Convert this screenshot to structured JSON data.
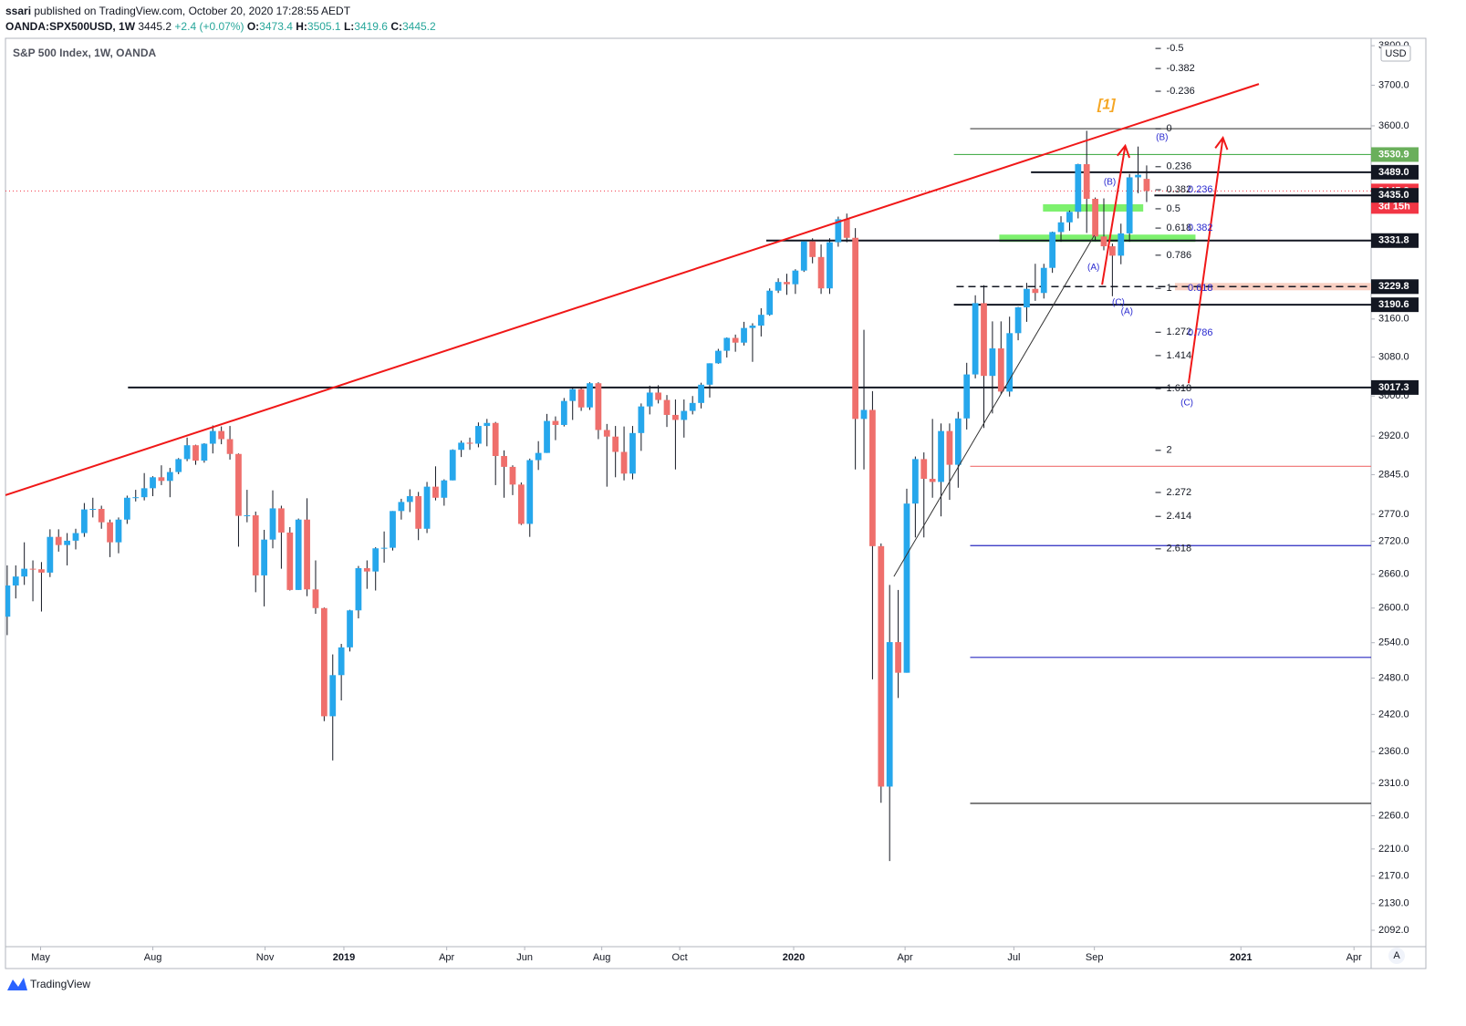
{
  "header": {
    "author": "ssari",
    "published": "published on TradingView.com, October 20, 2020 17:28:55 AEDT",
    "symbol": "OANDA:SPX500USD, 1W",
    "last": "3445.2",
    "change": "+2.4 (+0.07%)",
    "ohlc": [
      {
        "key": "O:",
        "value": "3473.4"
      },
      {
        "key": "H:",
        "value": "3505.1"
      },
      {
        "key": "L:",
        "value": "3419.6"
      },
      {
        "key": "C:",
        "value": "3445.2"
      }
    ],
    "currency": "USD",
    "auto": "A",
    "brand": "TradingView"
  },
  "chart_data": {
    "type": "candlestick",
    "title": "S&P 500 Index, 1W, OANDA",
    "log_scale": true,
    "grid": false,
    "up_color": "#26a7ec",
    "down_color": "#ef6f6c",
    "open": [
      2585,
      2640,
      2656,
      2670,
      2669,
      2663,
      2728,
      2713,
      2721,
      2735,
      2779,
      2780,
      2755,
      2718,
      2760,
      2801,
      2802,
      2819,
      2840,
      2833,
      2850,
      2875,
      2902,
      2872,
      2905,
      2930,
      2914,
      2885,
      2767,
      2768,
      2658,
      2723,
      2781,
      2736,
      2632,
      2760,
      2633,
      2600,
      2417,
      2485,
      2532,
      2596,
      2671,
      2665,
      2707,
      2708,
      2776,
      2793,
      2804,
      2743,
      2822,
      2801,
      2834,
      2893,
      2907,
      2905,
      2940,
      2946,
      2881,
      2860,
      2826,
      2752,
      2873,
      2887,
      2950,
      2942,
      2990,
      3014,
      2977,
      3026,
      2932,
      2919,
      2889,
      2847,
      2926,
      2979,
      3007,
      2992,
      2962,
      2952,
      2970,
      2986,
      3023,
      3067,
      3093,
      3120,
      3110,
      3141,
      3146,
      3169,
      3221,
      3240,
      3235,
      3265,
      3330,
      3295,
      3226,
      3328,
      3380,
      3338,
      2954,
      2972,
      2711,
      2305,
      2541,
      2489,
      2790,
      2875,
      2837,
      2831,
      2930,
      2864,
      2955,
      3044,
      3194,
      3041,
      3098,
      3009,
      3130,
      3185,
      3225,
      3216,
      3271,
      3351,
      3373,
      3397,
      3508,
      3427,
      3341,
      3319,
      3298,
      3348,
      3477,
      3473.4
    ],
    "high": [
      2676,
      2676,
      2718,
      2685,
      2682,
      2742,
      2742,
      2735,
      2743,
      2791,
      2801,
      2786,
      2760,
      2764,
      2805,
      2816,
      2848,
      2842,
      2863,
      2858,
      2877,
      2917,
      2903,
      2906,
      2941,
      2939,
      2940,
      2886,
      2816,
      2775,
      2741,
      2815,
      2786,
      2746,
      2762,
      2800,
      2685,
      2601,
      2520,
      2538,
      2597,
      2675,
      2685,
      2709,
      2738,
      2776,
      2799,
      2817,
      2812,
      2831,
      2861,
      2836,
      2894,
      2911,
      2917,
      2947,
      2954,
      2948,
      2892,
      2863,
      2830,
      2876,
      2910,
      2964,
      2959,
      2996,
      3017,
      3018,
      3028,
      3028,
      2944,
      2940,
      2939,
      2940,
      2985,
      3021,
      3022,
      3002,
      2993,
      2993,
      3000,
      3027,
      3067,
      3097,
      3121,
      3127,
      3154,
      3151,
      3183,
      3226,
      3248,
      3258,
      3268,
      3330,
      3337,
      3323,
      3337,
      3386,
      3393,
      3360,
      3137,
      3010,
      2716,
      2641,
      2632,
      2818,
      2880,
      2888,
      2954,
      2945,
      2945,
      2968,
      3068,
      3211,
      3233,
      3155,
      3155,
      3165,
      3186,
      3238,
      3280,
      3280,
      3352,
      3387,
      3400,
      3509,
      3588,
      3430,
      3428,
      3325,
      3370,
      3485,
      3550,
      3505.1
    ],
    "low": [
      2553,
      2617,
      2641,
      2612,
      2594,
      2655,
      2701,
      2676,
      2705,
      2728,
      2764,
      2743,
      2691,
      2698,
      2752,
      2794,
      2796,
      2804,
      2825,
      2802,
      2846,
      2871,
      2864,
      2868,
      2886,
      2904,
      2874,
      2710,
      2755,
      2628,
      2603,
      2707,
      2670,
      2631,
      2632,
      2621,
      2590,
      2409,
      2346,
      2443,
      2525,
      2582,
      2634,
      2631,
      2681,
      2703,
      2760,
      2774,
      2722,
      2735,
      2796,
      2786,
      2834,
      2879,
      2893,
      2898,
      2900,
      2825,
      2801,
      2806,
      2750,
      2728,
      2854,
      2887,
      2912,
      2939,
      2952,
      2970,
      2972,
      2914,
      2822,
      2840,
      2834,
      2836,
      2891,
      2963,
      2985,
      2938,
      2855,
      2917,
      2963,
      2975,
      2997,
      3066,
      3079,
      3091,
      3104,
      3070,
      3123,
      3167,
      3216,
      3212,
      3214,
      3262,
      3281,
      3214,
      3214,
      3318,
      3328,
      2855,
      2855,
      2478,
      2280,
      2192,
      2447,
      2489,
      2727,
      2727,
      2801,
      2766,
      2797,
      2820,
      2933,
      3036,
      2936,
      2965,
      3004,
      2999,
      3115,
      3154,
      3199,
      3204,
      3260,
      3329,
      3354,
      3382,
      3349,
      3330,
      3310,
      3209,
      3279,
      3329,
      3440,
      3419.6
    ],
    "close": [
      2640,
      2656,
      2670,
      2669,
      2663,
      2728,
      2713,
      2721,
      2735,
      2779,
      2780,
      2755,
      2718,
      2760,
      2801,
      2802,
      2819,
      2840,
      2833,
      2850,
      2875,
      2902,
      2872,
      2905,
      2930,
      2914,
      2885,
      2767,
      2768,
      2658,
      2723,
      2781,
      2736,
      2632,
      2760,
      2633,
      2600,
      2417,
      2485,
      2532,
      2596,
      2671,
      2665,
      2707,
      2708,
      2776,
      2793,
      2804,
      2743,
      2822,
      2801,
      2834,
      2893,
      2907,
      2905,
      2940,
      2946,
      2881,
      2860,
      2826,
      2752,
      2873,
      2887,
      2950,
      2942,
      2990,
      3014,
      2977,
      3026,
      2932,
      2919,
      2889,
      2847,
      2926,
      2979,
      3007,
      2992,
      2962,
      2952,
      2970,
      2986,
      3023,
      3067,
      3093,
      3120,
      3110,
      3141,
      3146,
      3169,
      3221,
      3240,
      3235,
      3265,
      3330,
      3295,
      3226,
      3328,
      3380,
      3338,
      2954,
      2972,
      2711,
      2305,
      2541,
      2489,
      2790,
      2875,
      2837,
      2831,
      2930,
      2864,
      2955,
      3044,
      3194,
      3041,
      3098,
      3009,
      3130,
      3185,
      3225,
      3216,
      3271,
      3351,
      3373,
      3397,
      3508,
      3427,
      3341,
      3319,
      3298,
      3348,
      3477,
      3483,
      3445.2
    ],
    "xlim": [
      -0.2,
      159.2
    ],
    "ylim": [
      2069,
      3819
    ],
    "xticks": [
      {
        "value": 3.9,
        "label": "May"
      },
      {
        "value": 17.0,
        "label": "Aug"
      },
      {
        "value": 30.1,
        "label": "Nov"
      },
      {
        "value": 39.3,
        "label": "2019"
      },
      {
        "value": 51.3,
        "label": "Apr"
      },
      {
        "value": 60.4,
        "label": "Jun"
      },
      {
        "value": 69.4,
        "label": "Aug"
      },
      {
        "value": 78.5,
        "label": "Oct"
      },
      {
        "value": 91.8,
        "label": "2020"
      },
      {
        "value": 104.8,
        "label": "Apr"
      },
      {
        "value": 117.5,
        "label": "Jul"
      },
      {
        "value": 126.9,
        "label": "Sep"
      },
      {
        "value": 144.0,
        "label": "2021"
      },
      {
        "value": 157.2,
        "label": "Apr"
      }
    ],
    "yticks": [
      {
        "value": 3800,
        "label": "3800.0"
      },
      {
        "value": 3700,
        "label": "3700.0"
      },
      {
        "value": 3600,
        "label": "3600.0"
      },
      {
        "value": 3160,
        "label": "3160.0"
      },
      {
        "value": 3080,
        "label": "3080.0"
      },
      {
        "value": 3000,
        "label": "3000.0"
      },
      {
        "value": 2920,
        "label": "2920.0"
      },
      {
        "value": 2845,
        "label": "2845.0"
      },
      {
        "value": 2770,
        "label": "2770.0"
      },
      {
        "value": 2720,
        "label": "2720.0"
      },
      {
        "value": 2660,
        "label": "2660.0"
      },
      {
        "value": 2600,
        "label": "2600.0"
      },
      {
        "value": 2540,
        "label": "2540.0"
      },
      {
        "value": 2480,
        "label": "2480.0"
      },
      {
        "value": 2420,
        "label": "2420.0"
      },
      {
        "value": 2360,
        "label": "2360.0"
      },
      {
        "value": 2310,
        "label": "2310.0"
      },
      {
        "value": 2260,
        "label": "2260.0"
      },
      {
        "value": 2210,
        "label": "2210.0"
      },
      {
        "value": 2170,
        "label": "2170.0"
      },
      {
        "value": 2130,
        "label": "2130.0"
      },
      {
        "value": 2092,
        "label": "2092.0"
      }
    ],
    "price_labels": [
      {
        "value": 3530.9,
        "label": "3530.9",
        "color": "#6aaf5b"
      },
      {
        "value": 3489.0,
        "label": "3489.0",
        "color": "#131722"
      },
      {
        "value": 3445.2,
        "label": "3445.2",
        "color": "#f23645"
      },
      {
        "value": 3435.0,
        "label": "3435.0",
        "color": "#131722"
      },
      {
        "value": 3331.8,
        "label": "3331.8",
        "color": "#131722"
      },
      {
        "value": 3229.8,
        "label": "3229.8",
        "color": "#131722"
      },
      {
        "value": 3190.6,
        "label": "3190.6",
        "color": "#131722"
      },
      {
        "value": 3017.3,
        "label": "3017.3",
        "color": "#131722"
      }
    ],
    "countdown": "3d 15h",
    "levels": [
      {
        "price": 3017.3,
        "from": 14.1,
        "color": "#131722"
      },
      {
        "price": 3331.8,
        "from": 88.6,
        "color": "#131722"
      },
      {
        "price": 3190.6,
        "from": 110.5,
        "color": "#131722"
      },
      {
        "price": 3489.0,
        "from": 119.5,
        "color": "#131722"
      },
      {
        "price": 3435.0,
        "from": 133.9,
        "color": "#131722"
      },
      {
        "price": 3530.9,
        "from": 110.5,
        "color": "#4caf50"
      },
      {
        "price": 3593,
        "from": 112.4,
        "color": "#555555"
      },
      {
        "price": 2861,
        "from": 112.4,
        "color": "#f07070"
      },
      {
        "price": 2712,
        "from": 112.4,
        "color": "#2a2ac0"
      },
      {
        "price": 2515,
        "from": 112.4,
        "color": "#2a2ac0"
      },
      {
        "price": 2279,
        "from": 112.4,
        "color": "#333333"
      }
    ],
    "dashed_level": {
      "price": 3229.8,
      "from": 110.8,
      "color": "#131722"
    },
    "zones": [
      {
        "price": 3406,
        "from": 120.9,
        "to": 132.6,
        "color": "#66ee55"
      },
      {
        "price": 3337,
        "from": 115.8,
        "to": 138.7,
        "color": "#66ee55"
      },
      {
        "price": 3229.8,
        "from": 136.3,
        "to": 159.2,
        "color": "#f8c8b8"
      }
    ],
    "trendlines": [
      {
        "color": "#f01818",
        "points": [
          [
            -0.2,
            2806
          ],
          [
            146.1,
            3703
          ]
        ]
      },
      {
        "color": "#333333",
        "points": [
          [
            103.5,
            2656
          ],
          [
            126.9,
            3344
          ]
        ]
      }
    ],
    "arrows": [
      {
        "color": "#f01818",
        "points": [
          [
            127.8,
            3234
          ],
          [
            130.5,
            3552
          ]
        ]
      },
      {
        "color": "#f01818",
        "points": [
          [
            137.9,
            3026
          ],
          [
            141.9,
            3571
          ]
        ]
      }
    ],
    "fib": {
      "x": 135.3,
      "levels": [
        -0.5,
        -0.382,
        -0.236,
        0,
        0.236,
        0.382,
        0.5,
        0.618,
        0.786,
        1,
        1.272,
        1.414,
        1.618,
        2,
        2.272,
        2.414,
        2.618
      ],
      "prices": [
        3793,
        3742,
        3685,
        3593,
        3502,
        3448,
        3404,
        3360,
        3299,
        3226,
        3132,
        3083,
        3015,
        2892,
        2811,
        2766,
        2706
      ]
    },
    "sub_fib": {
      "x": 137.8,
      "levels": [
        0.236,
        0.382,
        0.618,
        0.786
      ],
      "prices": [
        3448,
        3360,
        3226,
        3130
      ],
      "color": "#2a2ad0"
    },
    "wave_labels": [
      {
        "text": "[1]",
        "x": 128.3,
        "price": 3651,
        "color": "#f5a623"
      },
      {
        "text": "(B)",
        "x": 134.8,
        "price": 3571,
        "color": "#2a2ad0"
      },
      {
        "text": "(B)",
        "x": 128.7,
        "price": 3465,
        "color": "#2a2ad0"
      },
      {
        "text": "(A)",
        "x": 126.8,
        "price": 3272,
        "color": "#2a2ad0"
      },
      {
        "text": "(C)",
        "x": 129.7,
        "price": 3195,
        "color": "#2a2ad0"
      },
      {
        "text": "(A)",
        "x": 130.7,
        "price": 3175,
        "color": "#2a2ad0"
      },
      {
        "text": "(C)",
        "x": 137.7,
        "price": 2986,
        "color": "#2a2ad0"
      }
    ]
  }
}
